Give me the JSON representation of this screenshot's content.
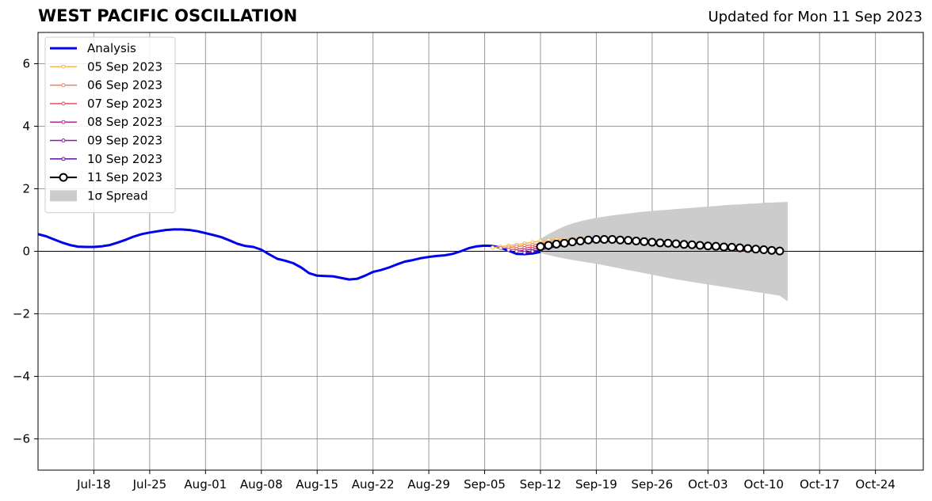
{
  "chart_data": {
    "type": "line",
    "title": "WEST PACIFIC OSCILLATION",
    "subtitle": "Updated for Mon 11 Sep 2023",
    "xlabel": "",
    "ylabel": "",
    "x_axis": "date",
    "xlim": [
      "2023-07-11",
      "2023-10-30"
    ],
    "ylim": [
      -7,
      7
    ],
    "yticks": [
      -6,
      -4,
      -2,
      0,
      2,
      4,
      6
    ],
    "ytick_labels": [
      "−6",
      "−4",
      "−2",
      "0",
      "2",
      "4",
      "6"
    ],
    "xticks": [
      "2023-07-18",
      "2023-07-25",
      "2023-08-01",
      "2023-08-08",
      "2023-08-15",
      "2023-08-22",
      "2023-08-29",
      "2023-09-05",
      "2023-09-12",
      "2023-09-19",
      "2023-09-26",
      "2023-10-03",
      "2023-10-10",
      "2023-10-17",
      "2023-10-24"
    ],
    "xtick_labels": [
      "Jul-18",
      "Jul-25",
      "Aug-01",
      "Aug-08",
      "Aug-15",
      "Aug-22",
      "Aug-29",
      "Sep-05",
      "Sep-12",
      "Sep-19",
      "Sep-26",
      "Oct-03",
      "Oct-10",
      "Oct-17",
      "Oct-24"
    ],
    "grid": true,
    "zero_line": true,
    "legend_position": "top-left",
    "colors": {
      "analysis": "#0000ee",
      "spread": "#cccccc",
      "grid": "#9a9a9a"
    },
    "analysis": {
      "name": "Analysis",
      "points": [
        [
          "2023-07-11",
          0.55
        ],
        [
          "2023-07-12",
          0.48
        ],
        [
          "2023-07-13",
          0.38
        ],
        [
          "2023-07-14",
          0.28
        ],
        [
          "2023-07-15",
          0.2
        ],
        [
          "2023-07-16",
          0.15
        ],
        [
          "2023-07-17",
          0.14
        ],
        [
          "2023-07-18",
          0.14
        ],
        [
          "2023-07-19",
          0.16
        ],
        [
          "2023-07-20",
          0.2
        ],
        [
          "2023-07-21",
          0.28
        ],
        [
          "2023-07-22",
          0.37
        ],
        [
          "2023-07-23",
          0.47
        ],
        [
          "2023-07-24",
          0.55
        ],
        [
          "2023-07-25",
          0.6
        ],
        [
          "2023-07-26",
          0.64
        ],
        [
          "2023-07-27",
          0.68
        ],
        [
          "2023-07-28",
          0.7
        ],
        [
          "2023-07-29",
          0.7
        ],
        [
          "2023-07-30",
          0.68
        ],
        [
          "2023-07-31",
          0.64
        ],
        [
          "2023-08-01",
          0.58
        ],
        [
          "2023-08-02",
          0.52
        ],
        [
          "2023-08-03",
          0.45
        ],
        [
          "2023-08-04",
          0.35
        ],
        [
          "2023-08-05",
          0.24
        ],
        [
          "2023-08-06",
          0.17
        ],
        [
          "2023-08-07",
          0.14
        ],
        [
          "2023-08-08",
          0.05
        ],
        [
          "2023-08-09",
          -0.1
        ],
        [
          "2023-08-10",
          -0.24
        ],
        [
          "2023-08-11",
          -0.3
        ],
        [
          "2023-08-12",
          -0.38
        ],
        [
          "2023-08-13",
          -0.52
        ],
        [
          "2023-08-14",
          -0.7
        ],
        [
          "2023-08-15",
          -0.78
        ],
        [
          "2023-08-16",
          -0.79
        ],
        [
          "2023-08-17",
          -0.8
        ],
        [
          "2023-08-18",
          -0.85
        ],
        [
          "2023-08-19",
          -0.9
        ],
        [
          "2023-08-20",
          -0.88
        ],
        [
          "2023-08-21",
          -0.78
        ],
        [
          "2023-08-22",
          -0.66
        ],
        [
          "2023-08-23",
          -0.6
        ],
        [
          "2023-08-24",
          -0.52
        ],
        [
          "2023-08-25",
          -0.42
        ],
        [
          "2023-08-26",
          -0.33
        ],
        [
          "2023-08-27",
          -0.28
        ],
        [
          "2023-08-28",
          -0.22
        ],
        [
          "2023-08-29",
          -0.18
        ],
        [
          "2023-08-30",
          -0.15
        ],
        [
          "2023-08-31",
          -0.13
        ],
        [
          "2023-09-01",
          -0.08
        ],
        [
          "2023-09-02",
          0.0
        ],
        [
          "2023-09-03",
          0.1
        ],
        [
          "2023-09-04",
          0.16
        ],
        [
          "2023-09-05",
          0.18
        ],
        [
          "2023-09-06",
          0.17
        ],
        [
          "2023-09-07",
          0.12
        ],
        [
          "2023-09-08",
          0.02
        ],
        [
          "2023-09-09",
          -0.08
        ],
        [
          "2023-09-10",
          -0.09
        ],
        [
          "2023-09-11",
          -0.07
        ],
        [
          "2023-09-12",
          -0.02
        ]
      ]
    },
    "series": [
      {
        "name": "05 Sep 2023",
        "color": "#f6b84f",
        "start": "2023-09-06",
        "values": [
          0.12,
          0.15,
          0.18,
          0.21,
          0.25,
          0.29,
          0.33,
          0.36,
          0.38,
          0.4,
          0.41,
          0.42,
          0.42,
          0.41,
          0.4,
          0.38,
          0.36,
          0.34,
          0.32,
          0.3,
          0.28,
          0.26,
          0.24,
          0.22,
          0.2,
          0.18,
          0.16,
          0.13,
          0.1,
          0.07,
          0.04
        ]
      },
      {
        "name": "06 Sep 2023",
        "color": "#f07f4f",
        "start": "2023-09-07",
        "values": [
          0.1,
          0.12,
          0.15,
          0.18,
          0.21,
          0.25,
          0.28,
          0.31,
          0.33,
          0.35,
          0.36,
          0.37,
          0.36,
          0.35,
          0.34,
          0.33,
          0.31,
          0.29,
          0.27,
          0.25,
          0.23,
          0.21,
          0.19,
          0.17,
          0.15,
          0.13,
          0.11,
          0.09,
          0.07,
          0.05,
          0.03
        ]
      },
      {
        "name": "07 Sep 2023",
        "color": "#e0506a",
        "start": "2023-09-08",
        "values": [
          0.05,
          0.07,
          0.1,
          0.14,
          0.18,
          0.22,
          0.26,
          0.29,
          0.31,
          0.33,
          0.34,
          0.34,
          0.34,
          0.33,
          0.32,
          0.31,
          0.29,
          0.27,
          0.25,
          0.23,
          0.21,
          0.19,
          0.17,
          0.15,
          0.13,
          0.11,
          0.09,
          0.07,
          0.05,
          0.03,
          0.02
        ]
      },
      {
        "name": "08 Sep 2023",
        "color": "#b52a8c",
        "start": "2023-09-09",
        "values": [
          0.0,
          0.03,
          0.07,
          0.11,
          0.16,
          0.2,
          0.24,
          0.27,
          0.29,
          0.31,
          0.32,
          0.32,
          0.32,
          0.31,
          0.3,
          0.29,
          0.27,
          0.25,
          0.23,
          0.21,
          0.19,
          0.17,
          0.15,
          0.13,
          0.11,
          0.09,
          0.07,
          0.05,
          0.04,
          0.02,
          0.01
        ]
      },
      {
        "name": "09 Sep 2023",
        "color": "#8a1aa6",
        "start": "2023-09-10",
        "values": [
          -0.04,
          0.0,
          0.05,
          0.1,
          0.15,
          0.2,
          0.24,
          0.27,
          0.29,
          0.31,
          0.32,
          0.32,
          0.32,
          0.31,
          0.3,
          0.28,
          0.26,
          0.24,
          0.22,
          0.2,
          0.18,
          0.16,
          0.14,
          0.12,
          0.1,
          0.08,
          0.06,
          0.04,
          0.03,
          0.02,
          0.01
        ]
      },
      {
        "name": "10 Sep 2023",
        "color": "#5a1590",
        "start": "2023-09-11",
        "values": [
          0.0,
          0.05,
          0.1,
          0.15,
          0.2,
          0.24,
          0.28,
          0.31,
          0.33,
          0.34,
          0.35,
          0.35,
          0.34,
          0.33,
          0.32,
          0.3,
          0.28,
          0.26,
          0.24,
          0.22,
          0.2,
          0.18,
          0.16,
          0.14,
          0.12,
          0.1,
          0.08,
          0.06,
          0.04,
          0.03,
          0.02
        ]
      },
      {
        "name": "11 Sep 2023",
        "color": "#000000",
        "start": "2023-09-12",
        "values": [
          0.15,
          0.19,
          0.23,
          0.26,
          0.3,
          0.33,
          0.36,
          0.38,
          0.38,
          0.38,
          0.36,
          0.35,
          0.33,
          0.31,
          0.29,
          0.27,
          0.26,
          0.24,
          0.22,
          0.21,
          0.19,
          0.17,
          0.16,
          0.14,
          0.13,
          0.11,
          0.09,
          0.07,
          0.05,
          0.03,
          0.01
        ]
      }
    ],
    "spread": {
      "name": "1σ Spread",
      "start": "2023-09-12",
      "upper": [
        0.4,
        0.55,
        0.68,
        0.8,
        0.89,
        0.96,
        1.02,
        1.07,
        1.11,
        1.15,
        1.18,
        1.21,
        1.24,
        1.27,
        1.29,
        1.31,
        1.33,
        1.35,
        1.37,
        1.39,
        1.41,
        1.43,
        1.45,
        1.47,
        1.49,
        1.5,
        1.52,
        1.53,
        1.55,
        1.56,
        1.57,
        1.58
      ],
      "lower": [
        -0.05,
        -0.12,
        -0.18,
        -0.23,
        -0.28,
        -0.32,
        -0.36,
        -0.4,
        -0.45,
        -0.5,
        -0.55,
        -0.6,
        -0.65,
        -0.7,
        -0.75,
        -0.8,
        -0.85,
        -0.9,
        -0.94,
        -0.98,
        -1.02,
        -1.06,
        -1.1,
        -1.14,
        -1.18,
        -1.22,
        -1.26,
        -1.3,
        -1.34,
        -1.38,
        -1.42,
        -1.6
      ]
    }
  }
}
